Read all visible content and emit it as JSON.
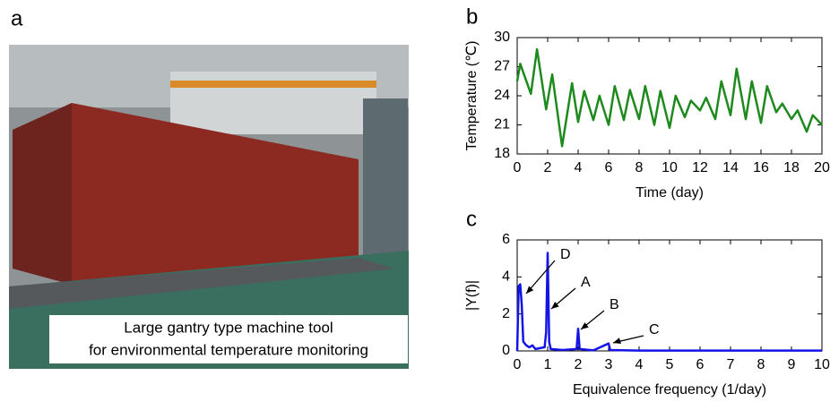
{
  "photo": {
    "label": "a",
    "caption": [
      "Large gantry type machine tool",
      "for environmental temperature monitoring"
    ]
  },
  "chart_data": [
    {
      "type": "line",
      "label": "b",
      "color": "#1e8a1e",
      "x_label": "Time (day)",
      "y_label": "Temperature (℃)",
      "x": [
        0,
        0.2,
        0.9,
        1.3,
        1.9,
        2.3,
        2.95,
        3.6,
        4.0,
        4.4,
        5.0,
        5.4,
        6.0,
        6.4,
        7.0,
        7.4,
        8.0,
        8.4,
        9.0,
        9.4,
        10.0,
        10.4,
        11.0,
        11.4,
        12.0,
        12.4,
        13.0,
        13.4,
        14.0,
        14.4,
        15.0,
        15.4,
        16.0,
        16.4,
        17.0,
        17.4,
        18.0,
        18.4,
        19.0,
        19.4,
        20.0
      ],
      "values": [
        25.5,
        27.3,
        24.2,
        28.8,
        22.6,
        26.2,
        18.8,
        25.3,
        21.3,
        24.5,
        21.5,
        24.0,
        21.0,
        25.0,
        21.5,
        24.6,
        21.6,
        25.0,
        21.0,
        24.5,
        20.7,
        24.0,
        21.8,
        23.5,
        22.5,
        23.8,
        21.6,
        25.5,
        22.0,
        26.8,
        21.6,
        25.5,
        21.2,
        25.0,
        22.3,
        23.2,
        21.6,
        22.5,
        20.3,
        22.0,
        21.0
      ],
      "xlim": [
        0,
        20
      ],
      "xticks": [
        0,
        2,
        4,
        6,
        8,
        10,
        12,
        14,
        16,
        18,
        20
      ],
      "ylim": [
        18,
        30
      ],
      "yticks": [
        18,
        21,
        24,
        27,
        30
      ]
    },
    {
      "type": "line",
      "label": "c",
      "color": "#1414e6",
      "x_label": "Equivalence frequency (1/day)",
      "y_label": "|Y(f)|",
      "x": [
        0,
        0.05,
        0.1,
        0.15,
        0.2,
        0.3,
        0.4,
        0.5,
        0.6,
        0.9,
        0.95,
        1.0,
        1.05,
        1.1,
        1.5,
        1.95,
        2.0,
        2.05,
        2.5,
        3.0,
        3.05,
        4,
        5,
        10
      ],
      "values": [
        0,
        3.5,
        3.6,
        2.5,
        0.5,
        0.3,
        0.2,
        0.3,
        0.1,
        0.2,
        1.0,
        5.3,
        0.5,
        0.1,
        0.05,
        0.1,
        1.2,
        0.1,
        0.03,
        0.4,
        0.05,
        0.02,
        0.02,
        0.02
      ],
      "xlim": [
        0,
        10
      ],
      "xticks": [
        0,
        1,
        2,
        3,
        4,
        5,
        6,
        7,
        8,
        9,
        10
      ],
      "ylim": [
        0,
        6
      ],
      "yticks": [
        0,
        2,
        4,
        6
      ],
      "annotations": [
        "D",
        "A",
        "B",
        "C"
      ]
    }
  ]
}
